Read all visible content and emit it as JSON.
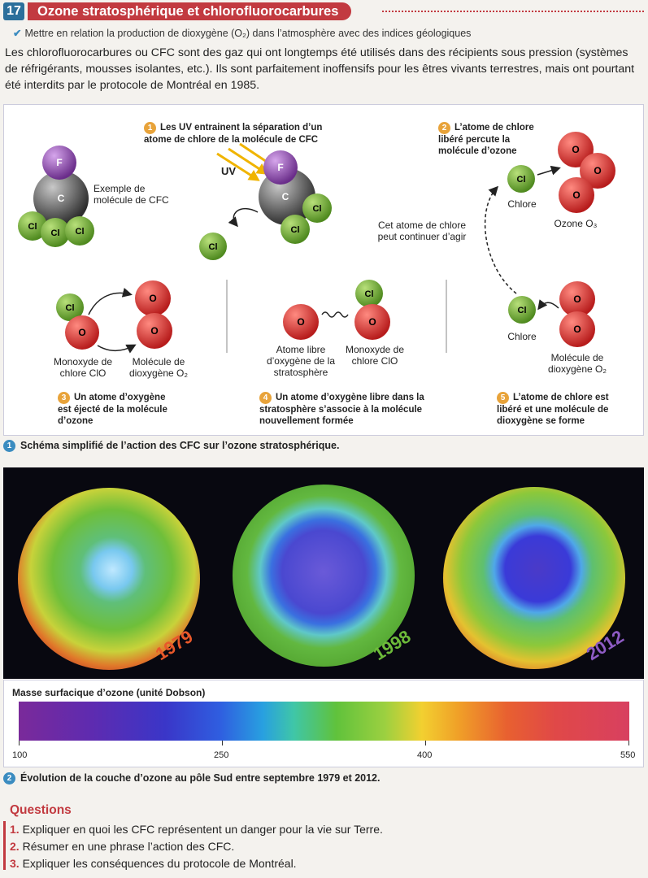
{
  "header": {
    "number": "17",
    "title": "Ozone stratosphérique et chlorofluorocarbures"
  },
  "objective": "Mettre en relation la production de dioxygène (O₂) dans l’atmosphère avec des indices géologiques",
  "intro": "Les chlorofluorocarbures ou CFC sont des gaz qui ont longtemps été utilisés dans des récipients sous pression (systèmes de réfrigérants, mousses isolantes, etc.). Ils sont parfaitement inoffensifs pour les êtres vivants terrestres, mais ont pourtant été interdits par le protocole de Montréal en 1985.",
  "doc1": {
    "caption_num": "1",
    "caption": "Schéma simplifié de l’action des CFC sur l’ozone stratosphérique.",
    "cfc_label": "Exemple de molécule de CFC",
    "step1_num": "1",
    "step1": "Les UV entrainent la séparation d’un atome de chlore de la molécule de CFC",
    "uv": "UV",
    "step2_num": "2",
    "step2": "L’atome de chlore libéré percute la molécule d’ozone",
    "chlore": "Chlore",
    "ozone": "Ozone O₃",
    "continue": "Cet atome de chlore peut continuer d’agir",
    "step3_num": "3",
    "step3": "Un atome d’oxygène est éjecté de la molécule d’ozone",
    "clo_label": "Monoxyde de chlore ClO",
    "o2_label": "Molécule de dioxygène O₂",
    "step4_num": "4",
    "step4": "Un atome d’oxygène libre dans la stratosphère s’associe à la molécule nouvellement formée",
    "free_o": "Atome libre d’oxygène de la stratosphère",
    "clo_label2": "Monoxyde de chlore ClO",
    "step5_num": "5",
    "step5": "L’atome de chlore est libéré et une molécule de dioxygène se forme",
    "chlore2": "Chlore",
    "o2_label2": "Molécule de dioxygène O₂",
    "atoms": {
      "F": "F",
      "C": "C",
      "Cl": "Cl",
      "O": "O"
    },
    "colors": {
      "cl": "#7cb342",
      "o": "#e53935",
      "f": "#9c5bb5",
      "c": "#6b6b6b",
      "uv": "#f0b400"
    }
  },
  "doc2": {
    "caption_num": "2",
    "caption": "Évolution de la couche d’ozone au pôle Sud entre septembre 1979 et 2012.",
    "years": [
      "1979",
      "1998",
      "2012"
    ],
    "year_colors": [
      "#e8582a",
      "#6dbb3a",
      "#8e5bc4"
    ],
    "scale_title": "Masse surfacique d’ozone (unité Dobson)",
    "scale_ticks": [
      "100",
      "250",
      "400",
      "550"
    ]
  },
  "questions": {
    "title": "Questions",
    "items": [
      {
        "n": "1.",
        "text": "Expliquer en quoi les CFC représentent un danger pour la vie sur Terre."
      },
      {
        "n": "2.",
        "text": "Résumer en une phrase l’action des CFC."
      },
      {
        "n": "3.",
        "text": "Expliquer les conséquences du protocole de Montréal."
      }
    ]
  }
}
